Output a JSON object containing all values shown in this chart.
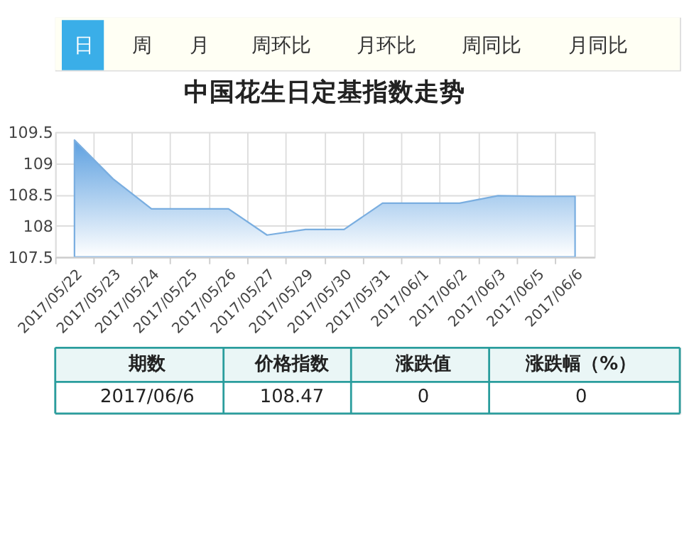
{
  "chart_data": {
    "type": "area",
    "title": "中国花生日定基指数走势",
    "categories": [
      "2017/05/22",
      "2017/05/23",
      "2017/05/24",
      "2017/05/25",
      "2017/05/26",
      "2017/05/27",
      "2017/05/29",
      "2017/05/30",
      "2017/05/31",
      "2017/06/1",
      "2017/06/2",
      "2017/06/3",
      "2017/06/5",
      "2017/06/6"
    ],
    "series": [
      {
        "color": "#7aaee0",
        "values": [
          109.37,
          108.75,
          108.27,
          108.27,
          108.27,
          107.85,
          107.94,
          107.94,
          108.36,
          108.36,
          108.36,
          108.48,
          108.47,
          108.47
        ]
      }
    ],
    "ylim": [
      107.5,
      109.5
    ],
    "yticks": [
      107.5,
      108,
      108.5,
      109,
      109.5
    ],
    "grid": true,
    "legend": false,
    "annotations": [
      "日",
      "周",
      "月",
      "周环比",
      "月环比",
      "周同比",
      "月同比",
      "期数",
      "价格指数",
      "涨跌值",
      "涨跌幅（%）",
      "2017/06/6",
      "108.47",
      "0",
      "0"
    ]
  }
}
